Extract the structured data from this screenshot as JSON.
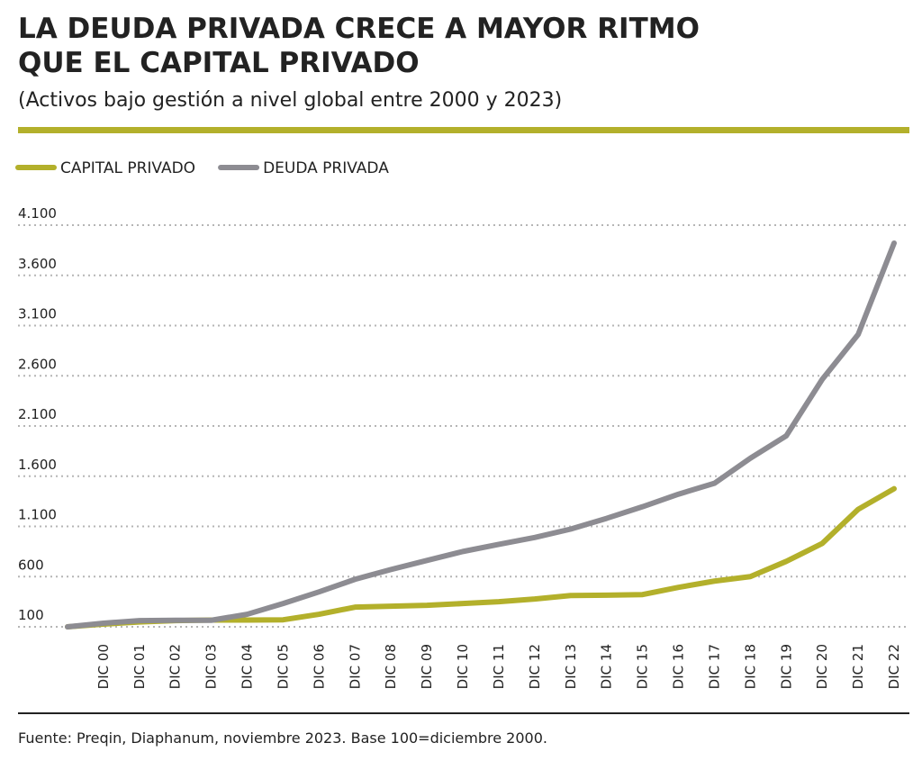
{
  "chart_data": {
    "type": "line",
    "title": [
      "LA DEUDA PRIVADA CRECE A MAYOR RITMO",
      "QUE EL CAPITAL PRIVADO"
    ],
    "subtitle": "(Activos bajo gestión a nivel global entre 2000 y 2023)",
    "source": "Fuente: Preqin, Diaphanum, noviembre 2023. Base 100=diciembre 2000.",
    "categories": [
      null,
      "DIC 00",
      "DIC 01",
      "DIC 02",
      "DIC 03",
      "DIC 04",
      "DIC 05",
      "DIC 06",
      "DIC 07",
      "DIC 08",
      "DIC 09",
      "DIC 10",
      "DIC 11",
      "DIC 12",
      "DIC 13",
      "DIC 14",
      "DIC 15",
      "DIC 16",
      "DIC 17",
      "DIC 18",
      "DIC 19",
      "DIC 20",
      "DIC 21",
      "DIC 22"
    ],
    "series": [
      {
        "name": "CAPITAL PRIVADO",
        "color": "#b3b02b",
        "values": [
          100,
          127,
          148,
          162,
          167,
          167,
          170,
          225,
          296,
          305,
          314,
          332,
          350,
          377,
          412,
          415,
          421,
          493,
          555,
          600,
          752,
          930,
          1270,
          1475
        ]
      },
      {
        "name": "DEUDA PRIVADA",
        "color": "#8d8c92",
        "values": [
          100,
          136,
          162,
          165,
          165,
          225,
          332,
          448,
          573,
          671,
          761,
          850,
          921,
          990,
          1073,
          1180,
          1296,
          1421,
          1529,
          1779,
          2002,
          2564,
          3011,
          3921
        ]
      }
    ],
    "ylim": [
      100,
      4100
    ],
    "yticks": [
      100,
      600,
      {
        "value": 1100,
        "label": "1.100"
      },
      {
        "value": 1600,
        "label": "1.600"
      },
      {
        "value": 2100,
        "label": "2.100"
      },
      {
        "value": 2600,
        "label": "2.600"
      },
      {
        "value": 3100,
        "label": "3.100"
      },
      {
        "value": 3600,
        "label": "3.600"
      },
      {
        "value": 4100,
        "label": "4.100"
      }
    ],
    "grid": true,
    "legend": "top-left"
  }
}
